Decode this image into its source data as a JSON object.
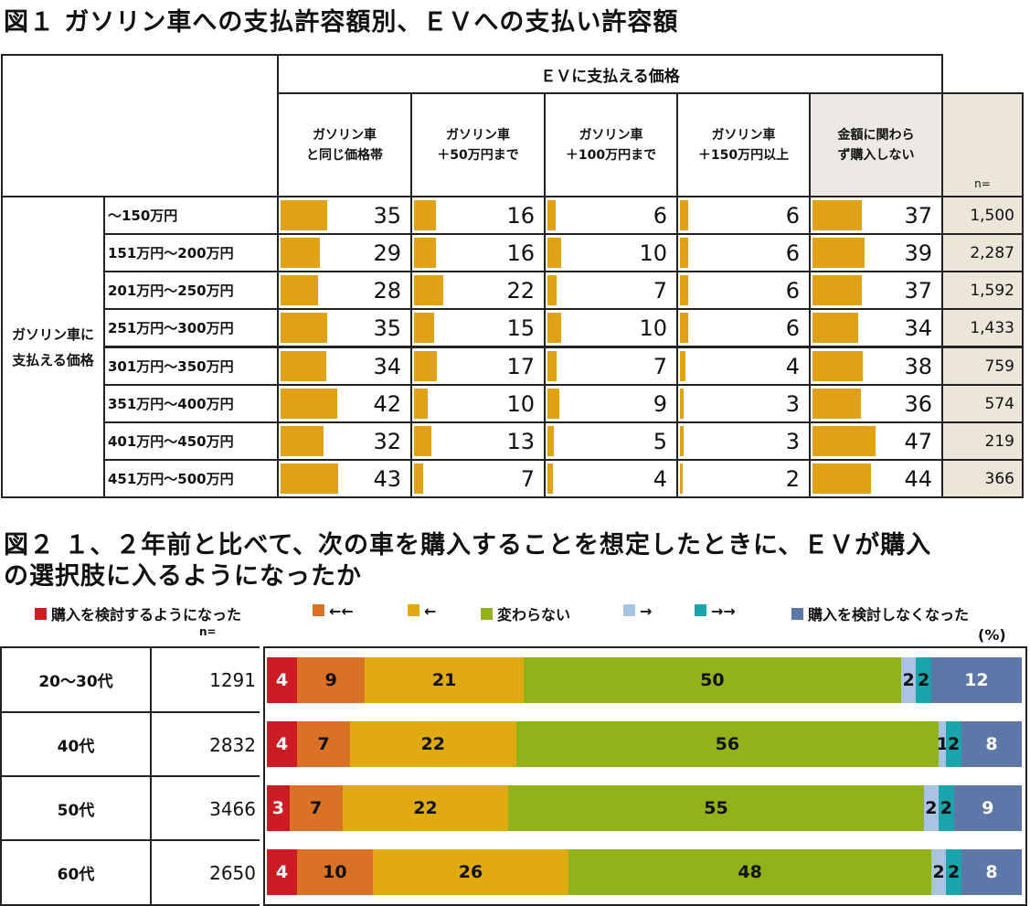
{
  "fig1": {
    "title": "図１ ガソリン車への支払許容額別、ＥＶへの支払い許容額",
    "header_main": "ＥＶに支払える価格",
    "columns": [
      {
        "line1": "ガソリン車",
        "line2": "と同じ価格帯"
      },
      {
        "line1": "ガソリン車",
        "line2": "＋50万円まで"
      },
      {
        "line1": "ガソリン車",
        "line2": "＋100万円まで"
      },
      {
        "line1": "ガソリン車",
        "line2": "＋150万円以上"
      },
      {
        "line1": "金額に関わら",
        "line2": "ず購入しない"
      }
    ],
    "n_header": "n=",
    "row_group_label_1": "ガソリン車に",
    "row_group_label_2": "支払える価格",
    "bar_color": "#e0a117",
    "rows": [
      {
        "label": "～150万円",
        "n": "1,500"
      },
      {
        "label": "151万円～200万円",
        "n": "2,287"
      },
      {
        "label": "201万円～250万円",
        "n": "1,592"
      },
      {
        "label": "251万円～300万円",
        "n": "1,433"
      },
      {
        "label": "301万円～350万円",
        "n": "759"
      },
      {
        "label": "351万円～400万円",
        "n": "574"
      },
      {
        "label": "401万円～450万円",
        "n": "219"
      },
      {
        "label": "451万円～500万円",
        "n": "366"
      }
    ]
  },
  "fig2": {
    "title_line1": "図２ １、２年前と比べて、次の車を購入することを想定したときに、ＥＶが購入",
    "title_line2": "の選択肢に入るようになったか",
    "n_label": "n=",
    "pct_label": "(%)",
    "legend": [
      {
        "label": "購入を検討するようになった",
        "color": "#cc1b22"
      },
      {
        "label": "←←",
        "color": "#d97224"
      },
      {
        "label": "←",
        "color": "#e0ab12"
      },
      {
        "label": "変わらない",
        "color": "#92b21c"
      },
      {
        "label": "→",
        "color": "#a8c4e2"
      },
      {
        "label": "→→",
        "color": "#1aa4ac"
      },
      {
        "label": "購入を検討しなくなった",
        "color": "#5d78a8"
      }
    ],
    "rows": [
      {
        "age": "20～30代",
        "n": "1291"
      },
      {
        "age": "40代",
        "n": "2832"
      },
      {
        "age": "50代",
        "n": "3466"
      },
      {
        "age": "60代",
        "n": "2650"
      }
    ]
  },
  "chart_data": [
    {
      "type": "bar",
      "title": "図１ ガソリン車への支払許容額別、ＥＶへの支払い許容額",
      "categories": [
        "～150万円",
        "151万円～200万円",
        "201万円～250万円",
        "251万円～300万円",
        "301万円～350万円",
        "351万円～400万円",
        "401万円～450万円",
        "451万円～500万円"
      ],
      "series": [
        {
          "name": "ガソリン車と同じ価格帯",
          "values": [
            35,
            29,
            28,
            35,
            34,
            42,
            32,
            43
          ]
        },
        {
          "name": "ガソリン車＋50万円まで",
          "values": [
            16,
            16,
            22,
            15,
            17,
            10,
            13,
            7
          ]
        },
        {
          "name": "ガソリン車＋100万円まで",
          "values": [
            6,
            10,
            7,
            10,
            7,
            9,
            5,
            4
          ]
        },
        {
          "name": "ガソリン車＋150万円以上",
          "values": [
            6,
            6,
            6,
            6,
            4,
            3,
            3,
            2
          ]
        },
        {
          "name": "金額に関わらず購入しない",
          "values": [
            37,
            39,
            37,
            34,
            38,
            36,
            47,
            44
          ]
        }
      ],
      "ylim": [
        0,
        100
      ]
    },
    {
      "type": "bar",
      "title": "図２ １、２年前と比べて、次の車を購入することを想定したときに、ＥＶが購入の選択肢に入るようになったか",
      "categories": [
        "20～30代",
        "40代",
        "50代",
        "60代"
      ],
      "series": [
        {
          "name": "購入を検討するようになった",
          "values": [
            4,
            4,
            3,
            4
          ]
        },
        {
          "name": "←←",
          "values": [
            9,
            7,
            7,
            10
          ]
        },
        {
          "name": "←",
          "values": [
            21,
            22,
            22,
            26
          ]
        },
        {
          "name": "変わらない",
          "values": [
            50,
            56,
            55,
            48
          ]
        },
        {
          "name": "→",
          "values": [
            2,
            1,
            2,
            2
          ]
        },
        {
          "name": "→→",
          "values": [
            2,
            2,
            2,
            2
          ]
        },
        {
          "name": "購入を検討しなくなった",
          "values": [
            12,
            8,
            9,
            8
          ]
        }
      ],
      "ylabel": "(%)",
      "ylim": [
        0,
        100
      ]
    }
  ]
}
